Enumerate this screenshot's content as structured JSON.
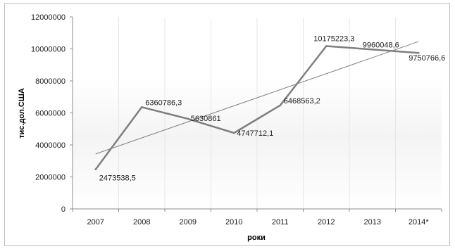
{
  "chart_data": {
    "type": "line",
    "title": "",
    "xlabel": "роки",
    "ylabel": "тис.дол.США",
    "categories": [
      "2007",
      "2008",
      "2009",
      "2010",
      "2011",
      "2012",
      "2013",
      "2014*"
    ],
    "series": [
      {
        "values": [
          2473538.5,
          6360786.3,
          5630861,
          4747712.1,
          6468563.2,
          10175223.3,
          9960048.6,
          9750766.6
        ],
        "labels": [
          "2473538,5",
          "6360786,3",
          "5630861",
          "4747712,1",
          "6468563,2",
          "10175223,3",
          "9960048,6",
          "9750766,6"
        ],
        "color": "#7f7f7f"
      }
    ],
    "trendline": {
      "type": "linear",
      "color": "#808080"
    },
    "yticks": [
      0,
      2000000,
      4000000,
      6000000,
      8000000,
      10000000,
      12000000
    ],
    "ytick_labels": [
      "0",
      "2000000",
      "4000000",
      "6000000",
      "8000000",
      "10000000",
      "12000000"
    ],
    "ylim": [
      0,
      12000000
    ],
    "grid": "vertical",
    "legend": "none"
  }
}
